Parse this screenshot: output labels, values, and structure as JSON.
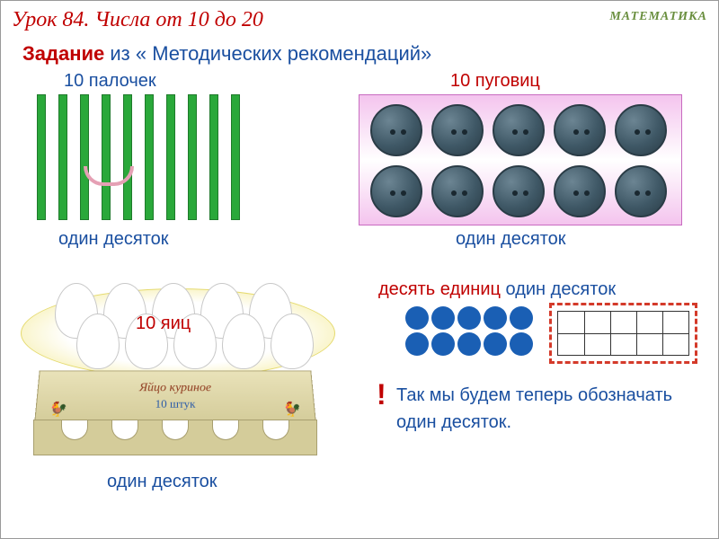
{
  "header": {
    "lesson": "Урок 84. Числа от 10 до 20",
    "subject": "МАТЕМАТИКА"
  },
  "task": {
    "bold": "Задание",
    "rest": " из « Методических рекомендаций»"
  },
  "sticks": {
    "label": "10 палочек",
    "count": 10,
    "color": "#2aa83a",
    "sub": "один десяток"
  },
  "buttons": {
    "label": "10 пуговиц",
    "rows": 2,
    "cols": 5,
    "sub": "один десяток"
  },
  "eggs": {
    "label": "10 яиц",
    "carton_text": "Яйцо куриное",
    "carton_count": "10 штук",
    "sub": "один десяток"
  },
  "units": {
    "red": "десять единиц ",
    "blue": "один десяток"
  },
  "dots": {
    "rows": 2,
    "cols": 5,
    "color": "#1a5fb4"
  },
  "grid": {
    "rows": 2,
    "cols": 5,
    "border_color": "#d43a2a"
  },
  "note": {
    "excl": "!",
    "text": "Так мы будем теперь обозначать один десяток."
  },
  "colors": {
    "red": "#c00000",
    "blue": "#1a4fa0",
    "green_subject": "#6a8f3f"
  }
}
